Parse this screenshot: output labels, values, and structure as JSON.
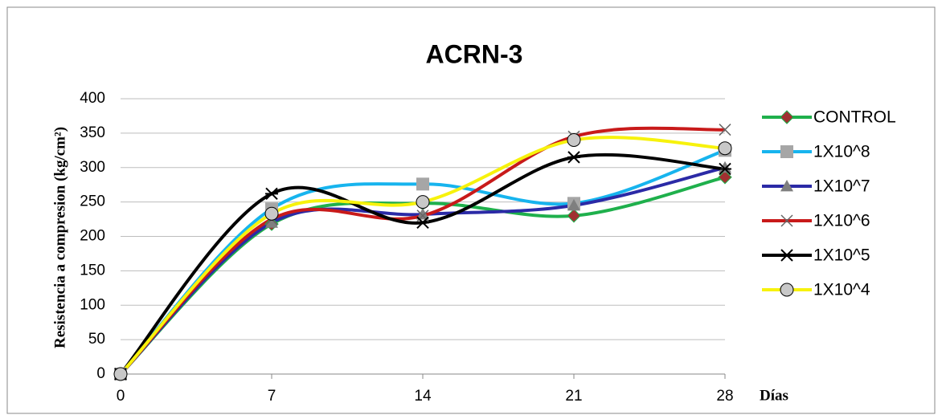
{
  "chart_data": {
    "type": "line",
    "title": "ACRN-3",
    "y_label": "Resistencia a compresion (kg/cm²)",
    "x_label": "Días",
    "x": [
      0,
      7,
      14,
      21,
      28
    ],
    "xlim": [
      0,
      28
    ],
    "xticks": [
      0,
      7,
      14,
      21,
      28
    ],
    "ylim": [
      0,
      400
    ],
    "yticks": [
      0,
      50,
      100,
      150,
      200,
      250,
      300,
      350,
      400
    ],
    "grid": true,
    "legend": "right",
    "smooth": true,
    "series": [
      {
        "name": "CONTROL",
        "color": "#1fb04c",
        "marker": "diamond",
        "values": [
          0,
          218,
          248,
          230,
          286
        ]
      },
      {
        "name": "1X10^8",
        "color": "#17b4ee",
        "marker": "square",
        "values": [
          0,
          240,
          276,
          248,
          325
        ]
      },
      {
        "name": "1X10^7",
        "color": "#2b2aa6",
        "marker": "triangle",
        "values": [
          0,
          220,
          232,
          245,
          300
        ]
      },
      {
        "name": "1X10^6",
        "color": "#c81a1a",
        "marker": "x",
        "values": [
          0,
          225,
          230,
          345,
          355
        ]
      },
      {
        "name": "1X10^5",
        "color": "#000000",
        "marker": "star",
        "values": [
          0,
          262,
          220,
          315,
          298
        ]
      },
      {
        "name": "1X10^4",
        "color": "#f7f20c",
        "marker": "circle",
        "values": [
          0,
          233,
          250,
          340,
          328
        ]
      }
    ]
  }
}
